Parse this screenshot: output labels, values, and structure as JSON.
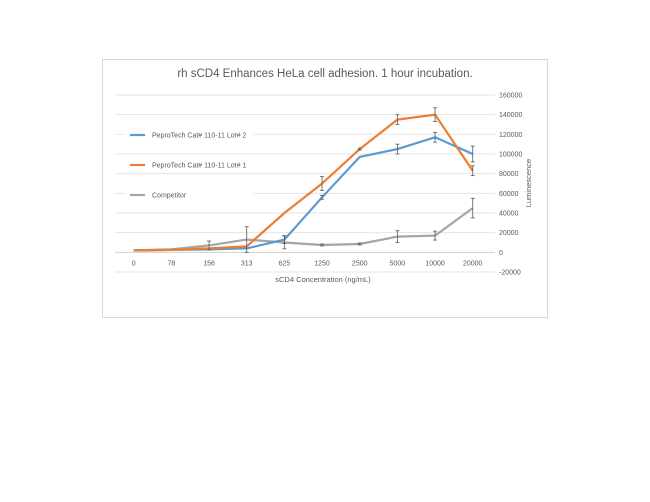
{
  "chart_data": {
    "type": "line",
    "title": "rh sCD4 Enhances HeLa cell adhesion.  1 hour incubation.",
    "xlabel": "sCD4 Concentration (ng/mL)",
    "ylabel": "Luminescence",
    "categories": [
      "0",
      "78",
      "156",
      "313",
      "625",
      "1250",
      "2500",
      "5000",
      "10000",
      "20000"
    ],
    "ylim": [
      -20000,
      160000
    ],
    "yticks": [
      160000,
      140000,
      120000,
      100000,
      80000,
      60000,
      40000,
      20000,
      0,
      -20000
    ],
    "y_axis_position": "right",
    "grid": true,
    "legend_position": "left",
    "series": [
      {
        "name": "PeproTech Cat# 110-11 Lot# 2",
        "color": "#5B9BD5",
        "values": [
          2000,
          2500,
          3000,
          4000,
          13000,
          56000,
          97000,
          105000,
          117000,
          100000
        ],
        "errors": [
          0,
          0,
          0,
          0,
          4000,
          2000,
          0,
          5000,
          5000,
          8000
        ]
      },
      {
        "name": "PeproTech Cat# 110-11 Lot# 1",
        "color": "#ED7D31",
        "values": [
          2000,
          2500,
          4000,
          6000,
          40000,
          70000,
          105000,
          135000,
          140000,
          83000
        ],
        "errors": [
          0,
          0,
          0,
          0,
          0,
          7000,
          1000,
          5000,
          7000,
          5000
        ]
      },
      {
        "name": "Competitor",
        "color": "#A5A5A5",
        "values": [
          2000,
          3000,
          7000,
          13000,
          10000,
          7500,
          8500,
          16000,
          17000,
          45000
        ],
        "errors": [
          0,
          0,
          4500,
          13000,
          6500,
          1000,
          1000,
          6000,
          4500,
          10000
        ]
      }
    ]
  }
}
